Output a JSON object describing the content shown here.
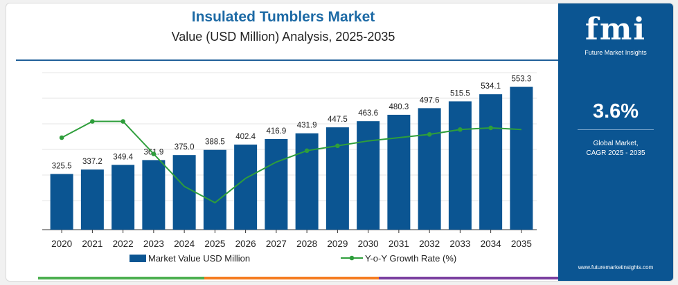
{
  "header": {
    "title": "Insulated Tumblers Market",
    "subtitle": "Value (USD Million) Analysis, 2025-2035"
  },
  "side_panel": {
    "logo_text": "fmi",
    "logo_sub": "Future Market Insights",
    "cagr_value": "3.6%",
    "cagr_label_line1": "Global Market,",
    "cagr_label_line2": "CAGR 2025 - 2035",
    "url": "www.futuremarketinsights.com"
  },
  "colors": {
    "bar": "#0b5592",
    "line": "#2e9e3b",
    "panel": "#0b5592",
    "title": "#1d6aa5",
    "footer": [
      "#4caf50",
      "#f57c20",
      "#7b3fa0"
    ]
  },
  "legend": {
    "bar": "Market Value USD Million",
    "line": "Y-o-Y Growth Rate (%)"
  },
  "chart_data": {
    "type": "bar",
    "title": "Insulated Tumblers Market",
    "categories": [
      "2020",
      "2021",
      "2022",
      "2023",
      "2024",
      "2025",
      "2026",
      "2027",
      "2028",
      "2029",
      "2030",
      "2031",
      "2032",
      "2033",
      "2034",
      "2035"
    ],
    "series": [
      {
        "name": "Market Value USD Million",
        "values": [
          325.5,
          337.2,
          349.4,
          361.9,
          375.0,
          388.5,
          402.4,
          416.9,
          431.9,
          447.5,
          463.6,
          480.3,
          497.6,
          515.5,
          534.1,
          553.3
        ],
        "labels": [
          "325.5",
          "337.2",
          "349.4",
          "361.9",
          "375.0",
          "388.5",
          "402.4",
          "416.9",
          "431.9",
          "447.5",
          "463.6",
          "480.3",
          "497.6",
          "515.5",
          "534.1",
          "553.3"
        ]
      },
      {
        "name": "Y-o-Y Growth Rate (%)",
        "type": "line",
        "values": [
          3.5,
          3.6,
          3.6,
          3.4,
          3.2,
          3.1,
          3.25,
          3.35,
          3.42,
          3.45,
          3.48,
          3.5,
          3.52,
          3.55,
          3.56,
          3.55
        ],
        "markers_at": [
          0,
          1,
          2,
          3,
          8,
          9,
          12,
          13,
          14
        ]
      }
    ],
    "ylim": [
      0,
      600
    ],
    "legend_position": "bottom",
    "grid": true
  }
}
